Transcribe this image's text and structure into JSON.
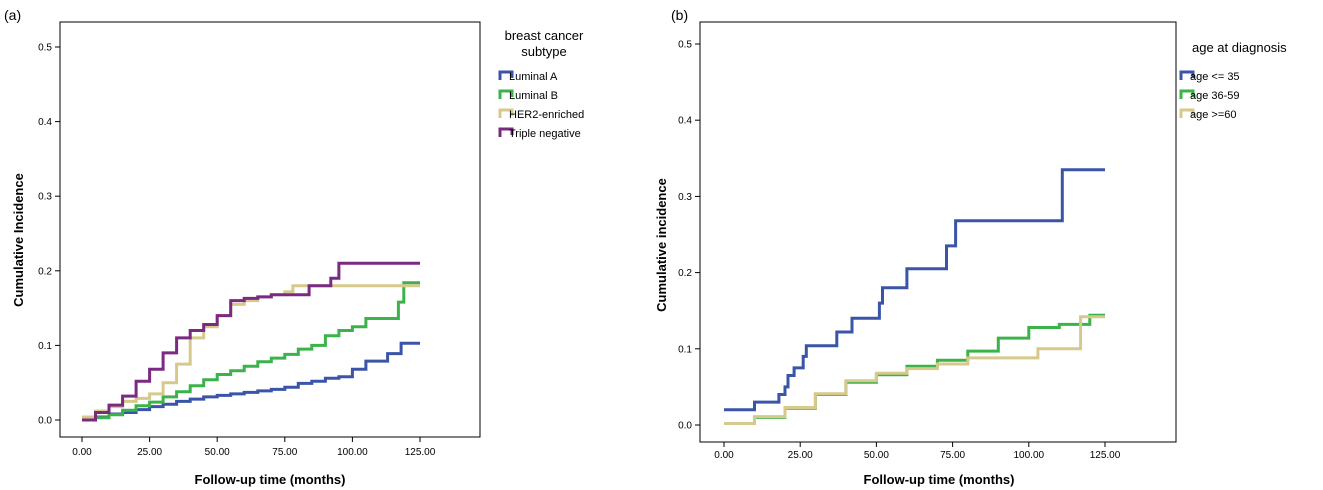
{
  "chart_data": [
    {
      "type": "line",
      "step": true,
      "panel_label": "(a)",
      "xlabel": "Follow-up time (months)",
      "ylabel": "Cumulative Incidence",
      "xlim": [
        0,
        125
      ],
      "ylim": [
        0,
        0.5
      ],
      "x_ticks": [
        "0.00",
        "25.00",
        "50.00",
        "75.00",
        "100.00",
        "125.00"
      ],
      "y_ticks": [
        "0.0",
        "0.1",
        "0.2",
        "0.3",
        "0.4",
        "0.5"
      ],
      "grid": false,
      "legend_title": "breast cancer subtype",
      "legend_position": "right",
      "series": [
        {
          "name": "Luminal A",
          "color": "#3a55a8",
          "points": [
            [
              0,
              0
            ],
            [
              5,
              0.004
            ],
            [
              10,
              0.008
            ],
            [
              15,
              0.01
            ],
            [
              20,
              0.014
            ],
            [
              25,
              0.018
            ],
            [
              30,
              0.021
            ],
            [
              35,
              0.025
            ],
            [
              40,
              0.028
            ],
            [
              45,
              0.031
            ],
            [
              50,
              0.033
            ],
            [
              55,
              0.035
            ],
            [
              60,
              0.037
            ],
            [
              65,
              0.039
            ],
            [
              70,
              0.041
            ],
            [
              75,
              0.044
            ],
            [
              80,
              0.049
            ],
            [
              85,
              0.052
            ],
            [
              90,
              0.056
            ],
            [
              95,
              0.058
            ],
            [
              100,
              0.068
            ],
            [
              105,
              0.079
            ],
            [
              113,
              0.089
            ],
            [
              118,
              0.103
            ],
            [
              125,
              0.103
            ]
          ]
        },
        {
          "name": "Luminal B",
          "color": "#3cb34a",
          "points": [
            [
              0,
              0
            ],
            [
              5,
              0.003
            ],
            [
              10,
              0.007
            ],
            [
              15,
              0.013
            ],
            [
              20,
              0.019
            ],
            [
              25,
              0.024
            ],
            [
              30,
              0.031
            ],
            [
              35,
              0.038
            ],
            [
              40,
              0.046
            ],
            [
              45,
              0.054
            ],
            [
              50,
              0.061
            ],
            [
              55,
              0.066
            ],
            [
              60,
              0.072
            ],
            [
              65,
              0.078
            ],
            [
              70,
              0.083
            ],
            [
              75,
              0.088
            ],
            [
              80,
              0.095
            ],
            [
              85,
              0.1
            ],
            [
              90,
              0.113
            ],
            [
              95,
              0.12
            ],
            [
              100,
              0.125
            ],
            [
              105,
              0.136
            ],
            [
              117,
              0.158
            ],
            [
              119,
              0.184
            ],
            [
              125,
              0.184
            ]
          ]
        },
        {
          "name": "HER2-enriched",
          "color": "#d5c98b",
          "points": [
            [
              0,
              0.004
            ],
            [
              5,
              0.012
            ],
            [
              10,
              0.018
            ],
            [
              15,
              0.025
            ],
            [
              20,
              0.029
            ],
            [
              25,
              0.035
            ],
            [
              30,
              0.05
            ],
            [
              35,
              0.075
            ],
            [
              40,
              0.11
            ],
            [
              45,
              0.125
            ],
            [
              50,
              0.14
            ],
            [
              55,
              0.155
            ],
            [
              60,
              0.16
            ],
            [
              65,
              0.165
            ],
            [
              70,
              0.168
            ],
            [
              75,
              0.172
            ],
            [
              78,
              0.18
            ],
            [
              125,
              0.18
            ]
          ]
        },
        {
          "name": "Triple negative",
          "color": "#7b2a82",
          "points": [
            [
              0,
              0
            ],
            [
              5,
              0.01
            ],
            [
              10,
              0.02
            ],
            [
              15,
              0.032
            ],
            [
              20,
              0.052
            ],
            [
              25,
              0.068
            ],
            [
              30,
              0.09
            ],
            [
              35,
              0.11
            ],
            [
              40,
              0.12
            ],
            [
              45,
              0.128
            ],
            [
              50,
              0.14
            ],
            [
              55,
              0.16
            ],
            [
              60,
              0.163
            ],
            [
              65,
              0.165
            ],
            [
              70,
              0.168
            ],
            [
              84,
              0.18
            ],
            [
              92,
              0.19
            ],
            [
              95,
              0.21
            ],
            [
              125,
              0.21
            ]
          ]
        }
      ]
    },
    {
      "type": "line",
      "step": true,
      "panel_label": "(b)",
      "xlabel": "Follow-up time (months)",
      "ylabel": "Cumulative incidence",
      "xlim": [
        0,
        125
      ],
      "ylim": [
        0,
        0.5
      ],
      "x_ticks": [
        "0.00",
        "25.00",
        "50.00",
        "75.00",
        "100.00",
        "125.00"
      ],
      "y_ticks": [
        "0.0",
        "0.1",
        "0.2",
        "0.3",
        "0.4",
        "0.5"
      ],
      "grid": false,
      "legend_title": "age at diagnosis",
      "legend_position": "right",
      "series": [
        {
          "name": "age <= 35",
          "color": "#3a55a8",
          "points": [
            [
              0,
              0.02
            ],
            [
              10,
              0.03
            ],
            [
              18,
              0.04
            ],
            [
              20,
              0.05
            ],
            [
              21,
              0.065
            ],
            [
              23,
              0.075
            ],
            [
              26,
              0.09
            ],
            [
              27,
              0.104
            ],
            [
              37,
              0.122
            ],
            [
              42,
              0.14
            ],
            [
              51,
              0.16
            ],
            [
              52,
              0.18
            ],
            [
              60,
              0.205
            ],
            [
              73,
              0.235
            ],
            [
              76,
              0.268
            ],
            [
              111,
              0.335
            ],
            [
              125,
              0.335
            ]
          ]
        },
        {
          "name": "age 36-59",
          "color": "#3cb34a",
          "points": [
            [
              0,
              0.002
            ],
            [
              10,
              0.01
            ],
            [
              20,
              0.022
            ],
            [
              30,
              0.04
            ],
            [
              40,
              0.056
            ],
            [
              50,
              0.066
            ],
            [
              60,
              0.077
            ],
            [
              70,
              0.085
            ],
            [
              80,
              0.097
            ],
            [
              90,
              0.114
            ],
            [
              100,
              0.128
            ],
            [
              110,
              0.132
            ],
            [
              120,
              0.144
            ],
            [
              125,
              0.144
            ]
          ]
        },
        {
          "name": "age >=60",
          "color": "#d5c98b",
          "points": [
            [
              0,
              0.002
            ],
            [
              10,
              0.011
            ],
            [
              20,
              0.023
            ],
            [
              30,
              0.041
            ],
            [
              40,
              0.058
            ],
            [
              50,
              0.068
            ],
            [
              60,
              0.074
            ],
            [
              70,
              0.08
            ],
            [
              80,
              0.088
            ],
            [
              100,
              0.088
            ],
            [
              103,
              0.1
            ],
            [
              115,
              0.1
            ],
            [
              117,
              0.142
            ],
            [
              125,
              0.142
            ]
          ]
        }
      ]
    }
  ]
}
